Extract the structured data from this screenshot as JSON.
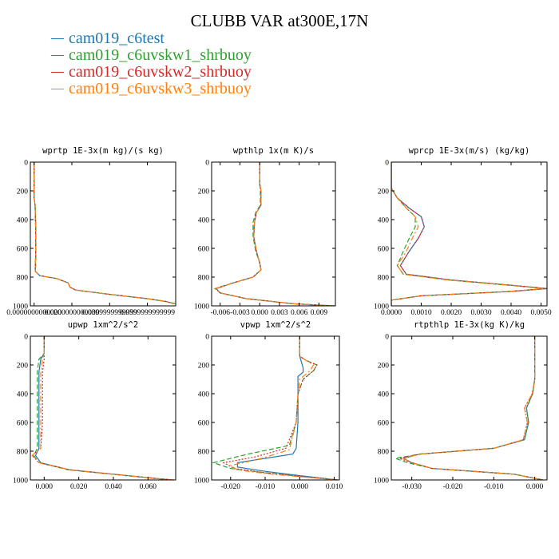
{
  "page_title": "CLUBB VAR at300E,17N",
  "legend": [
    {
      "label": "cam019_c6test",
      "color": "#1f77b4"
    },
    {
      "label": "cam019_c6uvskw1_shrbuoy",
      "color": "#2ca02c"
    },
    {
      "label": "cam019_c6uvskw2_shrbuoy",
      "color": "#d62728"
    },
    {
      "label": "cam019_c6uvskw3_shrbuoy",
      "color": "#ff7f0e"
    }
  ],
  "chart_data": [
    {
      "type": "line",
      "title": "wprtp  1E-3x(m kg)/(s kg)",
      "xlim": [
        -0.002,
        0.075
      ],
      "ylim": [
        1000,
        0
      ],
      "xticks": [
        0.0,
        0.02,
        0.04,
        0.06
      ],
      "xtick_labels": [
        "0.0000000000000",
        "0.0200000000000",
        "0.0399999999999",
        "0.0599999999999"
      ],
      "yticks": [
        0,
        200,
        400,
        600,
        800,
        1000
      ],
      "series": [
        {
          "style": "solid",
          "x": [
            0.0,
            0.0,
            0.0005,
            0.0008,
            0.0008,
            0.0006,
            0.003,
            0.012,
            0.018,
            0.019,
            0.022,
            0.04,
            0.06,
            0.07,
            0.074
          ],
          "y": [
            0,
            250,
            300,
            450,
            650,
            760,
            790,
            810,
            840,
            870,
            890,
            920,
            950,
            970,
            985
          ]
        },
        {
          "style": "dashed",
          "x": [
            0.0,
            0.0,
            0.0006,
            0.0009,
            0.0009,
            0.0007,
            0.003,
            0.012,
            0.018,
            0.019,
            0.022,
            0.04,
            0.06,
            0.07,
            0.075
          ],
          "y": [
            0,
            250,
            300,
            450,
            650,
            760,
            790,
            810,
            840,
            870,
            890,
            920,
            950,
            970,
            985
          ]
        },
        {
          "style": "dotted",
          "x": [
            0.0,
            0.0,
            0.0005,
            0.0008,
            0.0008,
            0.0006,
            0.003,
            0.012,
            0.018,
            0.019,
            0.022,
            0.04,
            0.06,
            0.07,
            0.074
          ],
          "y": [
            0,
            250,
            300,
            450,
            650,
            760,
            790,
            810,
            840,
            870,
            890,
            920,
            950,
            970,
            985
          ]
        },
        {
          "style": "dashdot",
          "x": [
            0.0,
            0.0,
            0.0005,
            0.0008,
            0.0008,
            0.0006,
            0.003,
            0.012,
            0.018,
            0.019,
            0.022,
            0.04,
            0.06,
            0.07,
            0.074
          ],
          "y": [
            0,
            250,
            300,
            450,
            650,
            760,
            790,
            810,
            840,
            870,
            890,
            920,
            950,
            970,
            985
          ]
        }
      ]
    },
    {
      "type": "line",
      "title": "wpthlp  1x(m K)/s",
      "xlim": [
        -0.0073,
        0.0115
      ],
      "ylim": [
        1000,
        0
      ],
      "xticks": [
        -0.006,
        -0.003,
        0.0,
        0.003,
        0.006,
        0.009
      ],
      "xtick_labels": [
        "-0.006",
        "-0.003",
        "0.000",
        "0.003",
        "0.006",
        "0.009"
      ],
      "yticks": [
        0,
        200,
        400,
        600,
        800,
        1000
      ],
      "series": [
        {
          "style": "solid",
          "x": [
            0.0,
            0.0,
            0.0002,
            0.0002,
            -0.0005,
            -0.0008,
            -0.0009,
            -0.0005,
            0.0,
            0.0002,
            -0.001,
            -0.004,
            -0.0066,
            -0.006,
            -0.002,
            0.005,
            0.011
          ],
          "y": [
            0,
            150,
            200,
            300,
            350,
            420,
            520,
            620,
            700,
            750,
            800,
            840,
            880,
            910,
            950,
            985,
            1000
          ]
        },
        {
          "style": "dashed",
          "x": [
            0.0,
            0.0,
            0.0001,
            0.0001,
            -0.0006,
            -0.001,
            -0.001,
            -0.0006,
            0.0,
            0.0002,
            -0.001,
            -0.004,
            -0.0068,
            -0.006,
            -0.002,
            0.005,
            0.0115
          ],
          "y": [
            0,
            150,
            200,
            300,
            350,
            420,
            520,
            620,
            700,
            750,
            800,
            840,
            880,
            910,
            950,
            985,
            1000
          ]
        },
        {
          "style": "dotted",
          "x": [
            0.0,
            0.0,
            0.0002,
            0.0002,
            -0.0005,
            -0.0008,
            -0.0009,
            -0.0005,
            0.0,
            0.0002,
            -0.001,
            -0.004,
            -0.0067,
            -0.006,
            -0.002,
            0.005,
            0.011
          ],
          "y": [
            0,
            150,
            200,
            300,
            350,
            420,
            520,
            620,
            700,
            750,
            800,
            840,
            880,
            910,
            950,
            985,
            1000
          ]
        },
        {
          "style": "dashdot",
          "x": [
            0.0,
            0.0,
            0.0002,
            0.0002,
            -0.0005,
            -0.0008,
            -0.0009,
            -0.0005,
            0.0,
            0.0002,
            -0.001,
            -0.004,
            -0.0067,
            -0.006,
            -0.002,
            0.005,
            0.011
          ],
          "y": [
            0,
            150,
            200,
            300,
            350,
            420,
            520,
            620,
            700,
            750,
            800,
            840,
            880,
            910,
            950,
            985,
            1000
          ]
        }
      ]
    },
    {
      "type": "line",
      "title": "wprcp  1E-3x(m/s) (kg/kg)",
      "xlim": [
        0.0,
        0.0052
      ],
      "ylim": [
        1000,
        0
      ],
      "xticks": [
        0.0,
        0.001,
        0.002,
        0.003,
        0.004,
        0.005
      ],
      "xtick_labels": [
        "0.0000",
        "0.0010",
        "0.0020",
        "0.0030",
        "0.0040",
        "0.0050"
      ],
      "yticks": [
        0,
        200,
        400,
        600,
        800,
        1000
      ],
      "series": [
        {
          "style": "solid",
          "x": [
            0.0,
            0.0,
            0.0002,
            0.0006,
            0.001,
            0.0011,
            0.0009,
            0.0006,
            0.0003,
            0.0005,
            0.002,
            0.0042,
            0.0052,
            0.004,
            0.001,
            0.0,
            0.0
          ],
          "y": [
            0,
            180,
            250,
            320,
            380,
            450,
            530,
            620,
            720,
            780,
            820,
            860,
            880,
            900,
            930,
            960,
            1000
          ]
        },
        {
          "style": "dashed",
          "x": [
            0.0,
            0.0,
            0.0002,
            0.0005,
            0.0008,
            0.0008,
            0.0006,
            0.0004,
            0.0002,
            0.0004,
            0.0019,
            0.0041,
            0.0051,
            0.0039,
            0.001,
            0.0,
            0.0
          ],
          "y": [
            0,
            180,
            250,
            320,
            380,
            450,
            530,
            620,
            720,
            780,
            820,
            860,
            880,
            900,
            930,
            960,
            1000
          ]
        },
        {
          "style": "dotted",
          "x": [
            0.0,
            0.0,
            0.0002,
            0.0006,
            0.001,
            0.0011,
            0.0009,
            0.0006,
            0.0003,
            0.0005,
            0.002,
            0.0042,
            0.0052,
            0.004,
            0.001,
            0.0,
            0.0
          ],
          "y": [
            0,
            180,
            250,
            320,
            380,
            450,
            530,
            620,
            720,
            780,
            820,
            860,
            880,
            900,
            930,
            960,
            1000
          ]
        },
        {
          "style": "dashdot",
          "x": [
            0.0,
            0.0,
            0.0002,
            0.0005,
            0.0008,
            0.0009,
            0.0007,
            0.0005,
            0.0002,
            0.0004,
            0.0019,
            0.0041,
            0.0051,
            0.0039,
            0.001,
            0.0,
            0.0
          ],
          "y": [
            0,
            180,
            250,
            320,
            380,
            450,
            530,
            620,
            720,
            780,
            820,
            860,
            880,
            900,
            930,
            960,
            1000
          ]
        }
      ]
    },
    {
      "type": "line",
      "title": "upwp  1xm^2/s^2",
      "xlim": [
        -0.008,
        0.076
      ],
      "ylim": [
        1000,
        0
      ],
      "xticks": [
        0.0,
        0.02,
        0.04,
        0.06
      ],
      "xtick_labels": [
        "0.000",
        "0.020",
        "0.040",
        "0.060"
      ],
      "yticks": [
        0,
        200,
        400,
        600,
        800,
        1000
      ],
      "series": [
        {
          "style": "solid",
          "x": [
            0.0,
            0.0,
            -0.002,
            -0.003,
            -0.003,
            -0.003,
            -0.005,
            -0.002,
            0.015,
            0.04,
            0.065,
            0.074
          ],
          "y": [
            0,
            120,
            160,
            250,
            600,
            780,
            830,
            880,
            930,
            960,
            990,
            1000
          ]
        },
        {
          "style": "dashed",
          "x": [
            0.0,
            0.0,
            -0.003,
            -0.004,
            -0.004,
            -0.004,
            -0.006,
            -0.003,
            0.014,
            0.039,
            0.064,
            0.074
          ],
          "y": [
            0,
            120,
            160,
            250,
            600,
            780,
            830,
            880,
            930,
            960,
            990,
            1000
          ]
        },
        {
          "style": "dotted",
          "x": [
            0.0,
            0.0,
            0.0,
            -0.001,
            -0.001,
            -0.002,
            -0.007,
            -0.003,
            0.015,
            0.04,
            0.065,
            0.075
          ],
          "y": [
            0,
            120,
            160,
            250,
            600,
            780,
            830,
            880,
            930,
            960,
            990,
            1000
          ]
        },
        {
          "style": "dashdot",
          "x": [
            0.0,
            0.0,
            -0.001,
            -0.002,
            -0.002,
            -0.002,
            -0.007,
            -0.003,
            0.015,
            0.04,
            0.065,
            0.075
          ],
          "y": [
            0,
            120,
            160,
            250,
            600,
            780,
            830,
            880,
            930,
            960,
            990,
            1000
          ]
        }
      ]
    },
    {
      "type": "line",
      "title": "vpwp  1xm^2/s^2",
      "xlim": [
        -0.0255,
        0.0115
      ],
      "ylim": [
        1000,
        0
      ],
      "xticks": [
        -0.02,
        -0.01,
        0.0,
        0.01
      ],
      "xtick_labels": [
        "-0.020",
        "-0.010",
        "0.000",
        "0.010"
      ],
      "yticks": [
        0,
        200,
        400,
        600,
        800,
        1000
      ],
      "series": [
        {
          "style": "solid",
          "x": [
            0.0,
            0.0,
            0.001,
            0.001,
            -0.0005,
            -0.0005,
            -0.001,
            -0.002,
            -0.01,
            -0.018,
            -0.018,
            -0.01,
            0.0,
            0.011
          ],
          "y": [
            0,
            140,
            220,
            250,
            280,
            600,
            780,
            820,
            850,
            880,
            910,
            940,
            970,
            1000
          ]
        },
        {
          "style": "dashed",
          "x": [
            0.0,
            0.0,
            0.002,
            0.005,
            0.004,
            0.001,
            -0.0005,
            -0.001,
            -0.003,
            -0.015,
            -0.025,
            -0.02,
            -0.01,
            0.0,
            0.011
          ],
          "y": [
            0,
            140,
            170,
            200,
            240,
            300,
            400,
            600,
            760,
            820,
            880,
            920,
            950,
            975,
            1000
          ]
        },
        {
          "style": "dotted",
          "x": [
            0.0,
            0.0,
            0.002,
            0.005,
            0.004,
            0.001,
            -0.0005,
            -0.001,
            -0.004,
            -0.013,
            -0.022,
            -0.019,
            -0.01,
            0.0,
            0.011
          ],
          "y": [
            0,
            140,
            170,
            200,
            240,
            300,
            400,
            600,
            780,
            840,
            880,
            920,
            950,
            975,
            1000
          ]
        },
        {
          "style": "dashdot",
          "x": [
            0.0,
            0.0,
            0.002,
            0.004,
            0.003,
            0.0,
            -0.0005,
            -0.001,
            -0.003,
            -0.011,
            -0.02,
            -0.018,
            -0.01,
            0.0,
            0.011
          ],
          "y": [
            0,
            140,
            170,
            200,
            240,
            300,
            400,
            600,
            790,
            850,
            900,
            930,
            955,
            978,
            1000
          ]
        }
      ]
    },
    {
      "type": "line",
      "title": "rtpthlp  1E-3x(kg K)/kg",
      "xlim": [
        -0.035,
        0.003
      ],
      "ylim": [
        1000,
        0
      ],
      "xticks": [
        -0.03,
        -0.02,
        -0.01,
        0.0
      ],
      "xtick_labels": [
        "-0.030",
        "-0.020",
        "-0.010",
        "0.000"
      ],
      "yticks": [
        0,
        200,
        400,
        600,
        800,
        1000
      ],
      "series": [
        {
          "style": "solid",
          "x": [
            0.0,
            0.0,
            -0.0005,
            -0.002,
            -0.0015,
            -0.0025,
            -0.01,
            -0.028,
            -0.032,
            -0.03,
            -0.025,
            -0.005,
            0.002
          ],
          "y": [
            0,
            300,
            400,
            500,
            600,
            720,
            780,
            820,
            850,
            880,
            920,
            960,
            1000
          ]
        },
        {
          "style": "dashed",
          "x": [
            0.0,
            0.0,
            -0.0005,
            -0.002,
            -0.0015,
            -0.0025,
            -0.01,
            -0.028,
            -0.034,
            -0.031,
            -0.025,
            -0.005,
            0.002
          ],
          "y": [
            0,
            300,
            400,
            500,
            600,
            720,
            780,
            820,
            850,
            880,
            920,
            960,
            1000
          ]
        },
        {
          "style": "dotted",
          "x": [
            0.0,
            0.0,
            -0.0006,
            -0.0025,
            -0.0018,
            -0.0028,
            -0.01,
            -0.028,
            -0.033,
            -0.03,
            -0.025,
            -0.005,
            0.002
          ],
          "y": [
            0,
            300,
            400,
            500,
            600,
            720,
            780,
            820,
            850,
            880,
            920,
            960,
            1000
          ]
        },
        {
          "style": "dashdot",
          "x": [
            0.0,
            0.0,
            -0.0006,
            -0.0025,
            -0.0018,
            -0.0028,
            -0.01,
            -0.028,
            -0.032,
            -0.03,
            -0.025,
            -0.005,
            0.002
          ],
          "y": [
            0,
            300,
            400,
            500,
            600,
            720,
            780,
            820,
            850,
            880,
            920,
            960,
            1000
          ]
        }
      ]
    }
  ]
}
